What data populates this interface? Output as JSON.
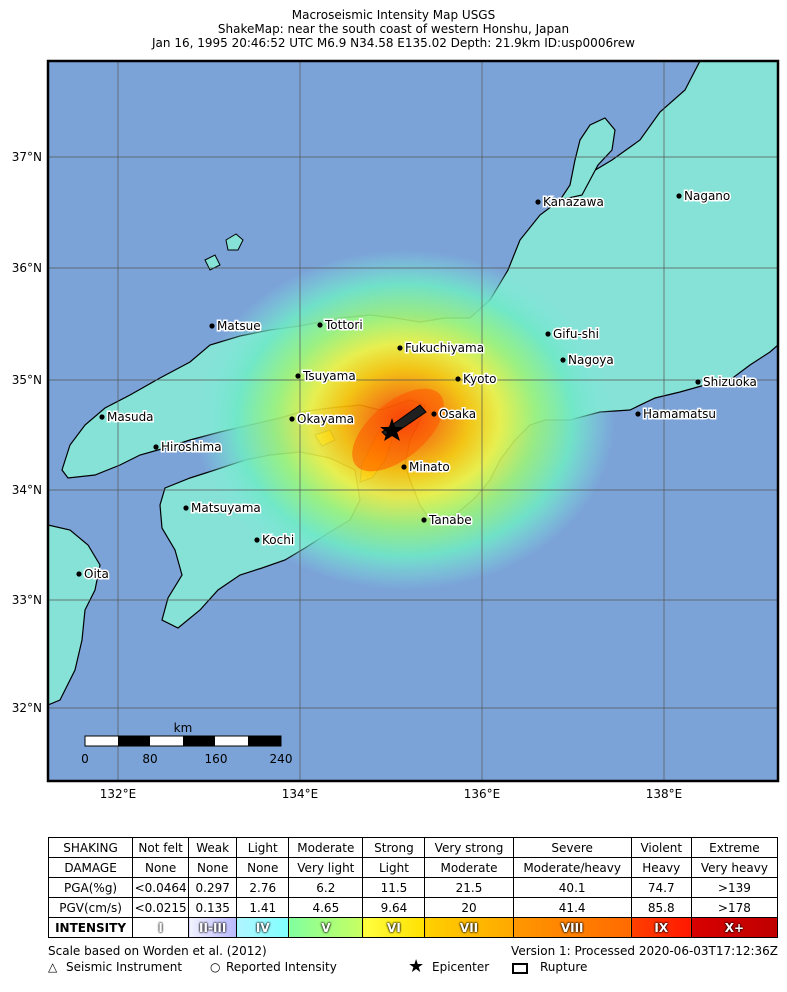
{
  "title": {
    "line1": "Macroseismic Intensity Map USGS",
    "line2": "ShakeMap: near the south coast of western Honshu, Japan",
    "line3": "Jan 16, 1995 20:46:52 UTC M6.9 N34.58 E135.02 Depth: 21.9km ID:usp0006rew"
  },
  "map": {
    "lat_labels": [
      "37°N",
      "36°N",
      "35°N",
      "34°N",
      "33°N",
      "32°N"
    ],
    "lon_labels": [
      "132°E",
      "134°E",
      "136°E",
      "138°E"
    ],
    "cities": [
      {
        "name": "Kanazawa"
      },
      {
        "name": "Nagano"
      },
      {
        "name": "Matsue"
      },
      {
        "name": "Tottori"
      },
      {
        "name": "Gifu-shi"
      },
      {
        "name": "Fukuchiyama"
      },
      {
        "name": "Nagoya"
      },
      {
        "name": "Tsuyama"
      },
      {
        "name": "Kyoto"
      },
      {
        "name": "Shizuoka"
      },
      {
        "name": "Masuda"
      },
      {
        "name": "Okayama"
      },
      {
        "name": "Osaka"
      },
      {
        "name": "Hamamatsu"
      },
      {
        "name": "Hiroshima"
      },
      {
        "name": "Minato"
      },
      {
        "name": "Matsuyama"
      },
      {
        "name": "Tanabe"
      },
      {
        "name": "Kochi"
      },
      {
        "name": "Oita"
      }
    ],
    "scalebar": {
      "unit": "km",
      "ticks": [
        "0",
        "80",
        "160",
        "240"
      ]
    }
  },
  "legend": {
    "rows": [
      {
        "header": "SHAKING",
        "cells": [
          "Not felt",
          "Weak",
          "Light",
          "Moderate",
          "Strong",
          "Very strong",
          "Severe",
          "Violent",
          "Extreme"
        ]
      },
      {
        "header": "DAMAGE",
        "cells": [
          "None",
          "None",
          "None",
          "Very light",
          "Light",
          "Moderate",
          "Moderate/heavy",
          "Heavy",
          "Very heavy"
        ]
      },
      {
        "header": "PGA(%g)",
        "cells": [
          "<0.0464",
          "0.297",
          "2.76",
          "6.2",
          "11.5",
          "21.5",
          "40.1",
          "74.7",
          ">139"
        ]
      },
      {
        "header": "PGV(cm/s)",
        "cells": [
          "<0.0215",
          "0.135",
          "1.41",
          "4.65",
          "9.64",
          "20",
          "41.4",
          "85.8",
          ">178"
        ]
      }
    ],
    "intensity": {
      "header": "INTENSITY",
      "cells": [
        "I",
        "II-III",
        "IV",
        "V",
        "VI",
        "VII",
        "VIII",
        "IX",
        "X+"
      ],
      "colors": [
        [
          "#ffffff",
          "#ffffff"
        ],
        [
          "#f2f2ff",
          "#b8b8ff"
        ],
        [
          "#b0f5ff",
          "#80ffff"
        ],
        [
          "#80ffa0",
          "#c8ff60"
        ],
        [
          "#ffff40",
          "#ffe000"
        ],
        [
          "#ffd000",
          "#ffa800"
        ],
        [
          "#ff9800",
          "#ff6a00"
        ],
        [
          "#ff4000",
          "#ff1800"
        ],
        [
          "#d80000",
          "#c00000"
        ]
      ]
    }
  },
  "footer": {
    "scale_note": "Scale based on Worden et al. (2012)",
    "version": "Version 1: Processed 2020-06-03T17:12:36Z",
    "seismic": "Seismic Instrument",
    "reported": "Reported Intensity",
    "epicenter": "Epicenter",
    "rupture": "Rupture"
  }
}
